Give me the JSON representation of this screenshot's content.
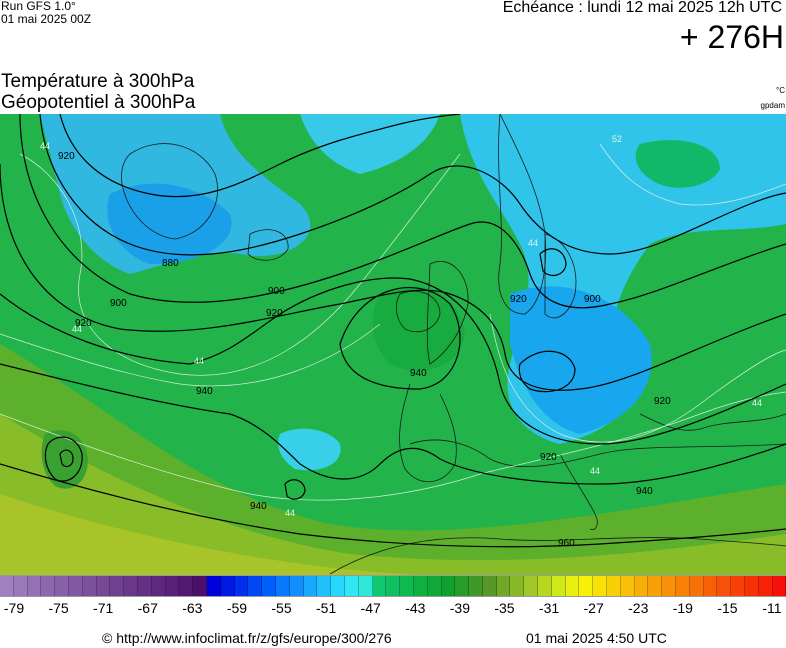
{
  "header": {
    "run": "Run GFS 1.0°",
    "run_date": "01 mai 2025 00Z",
    "echeance": "Echéance : lundi 12 mai 2025 12h UTC",
    "lead_time": "+ 276H",
    "title_temperature": "Température à 300hPa",
    "title_geopotential": "Géopotentiel à 300hPa",
    "unit_temperature": "°C",
    "unit_geopotential": "gpdam"
  },
  "map": {
    "contour_labels": [
      {
        "id": "c920-nw",
        "text": "920"
      },
      {
        "id": "c880",
        "text": "880"
      },
      {
        "id": "c900-w",
        "text": "900"
      },
      {
        "id": "c900-c",
        "text": "900"
      },
      {
        "id": "c920-w",
        "text": "920"
      },
      {
        "id": "c920-c",
        "text": "920"
      },
      {
        "id": "c940-w",
        "text": "940"
      },
      {
        "id": "c940-ire",
        "text": "940"
      },
      {
        "id": "c940-sw",
        "text": "940"
      },
      {
        "id": "c940-e",
        "text": "940"
      },
      {
        "id": "c900-e",
        "text": "900"
      },
      {
        "id": "c920-se",
        "text": "920"
      },
      {
        "id": "c920-scan",
        "text": "920"
      },
      {
        "id": "c920-bal",
        "text": "920"
      },
      {
        "id": "c960",
        "text": "960"
      }
    ],
    "temp_labels": [
      {
        "id": "t44-nw",
        "text": "44"
      },
      {
        "id": "t44-w",
        "text": "44"
      },
      {
        "id": "t44-c",
        "text": "44"
      },
      {
        "id": "t44-sw",
        "text": "44"
      },
      {
        "id": "t44-e",
        "text": "44"
      },
      {
        "id": "t44-ne",
        "text": "44"
      },
      {
        "id": "t52",
        "text": "52"
      },
      {
        "id": "t44-s",
        "text": "44"
      }
    ]
  },
  "scale": {
    "colors": [
      "#a080c0",
      "#9a78ba",
      "#9470b4",
      "#8e68ae",
      "#8860a8",
      "#8258a2",
      "#7c509c",
      "#764896",
      "#704090",
      "#6a388a",
      "#643084",
      "#5e287e",
      "#582078",
      "#521872",
      "#4c106c",
      "#0000dc",
      "#0018e4",
      "#0030ec",
      "#0048f4",
      "#0060fc",
      "#0878fc",
      "#1090fc",
      "#18a8fc",
      "#20c0fc",
      "#28d8fc",
      "#30e8f4",
      "#30e8d8",
      "#10c870",
      "#10c060",
      "#10b850",
      "#10b040",
      "#10a838",
      "#10a030",
      "#289c28",
      "#409828",
      "#589828",
      "#70a828",
      "#88b828",
      "#a0c828",
      "#b8d820",
      "#d0e818",
      "#e8f010",
      "#f8f008",
      "#f8e008",
      "#f8d008",
      "#f8c008",
      "#f8b008",
      "#f8a008",
      "#f89008",
      "#f88008",
      "#f87008",
      "#f86008",
      "#f85008",
      "#f84008",
      "#f83008",
      "#f82008",
      "#f81008"
    ],
    "labels": [
      "-79",
      "-75",
      "-71",
      "-67",
      "-63",
      "-59",
      "-55",
      "-51",
      "-47",
      "-43",
      "-39",
      "-35",
      "-31",
      "-27",
      "-23",
      "-19",
      "-15",
      "-11"
    ]
  },
  "footer": {
    "copyright": "© http://www.infoclimat.fr/z/gfs/europe/300/276",
    "generated": "01 mai 2025  4:50 UTC"
  }
}
